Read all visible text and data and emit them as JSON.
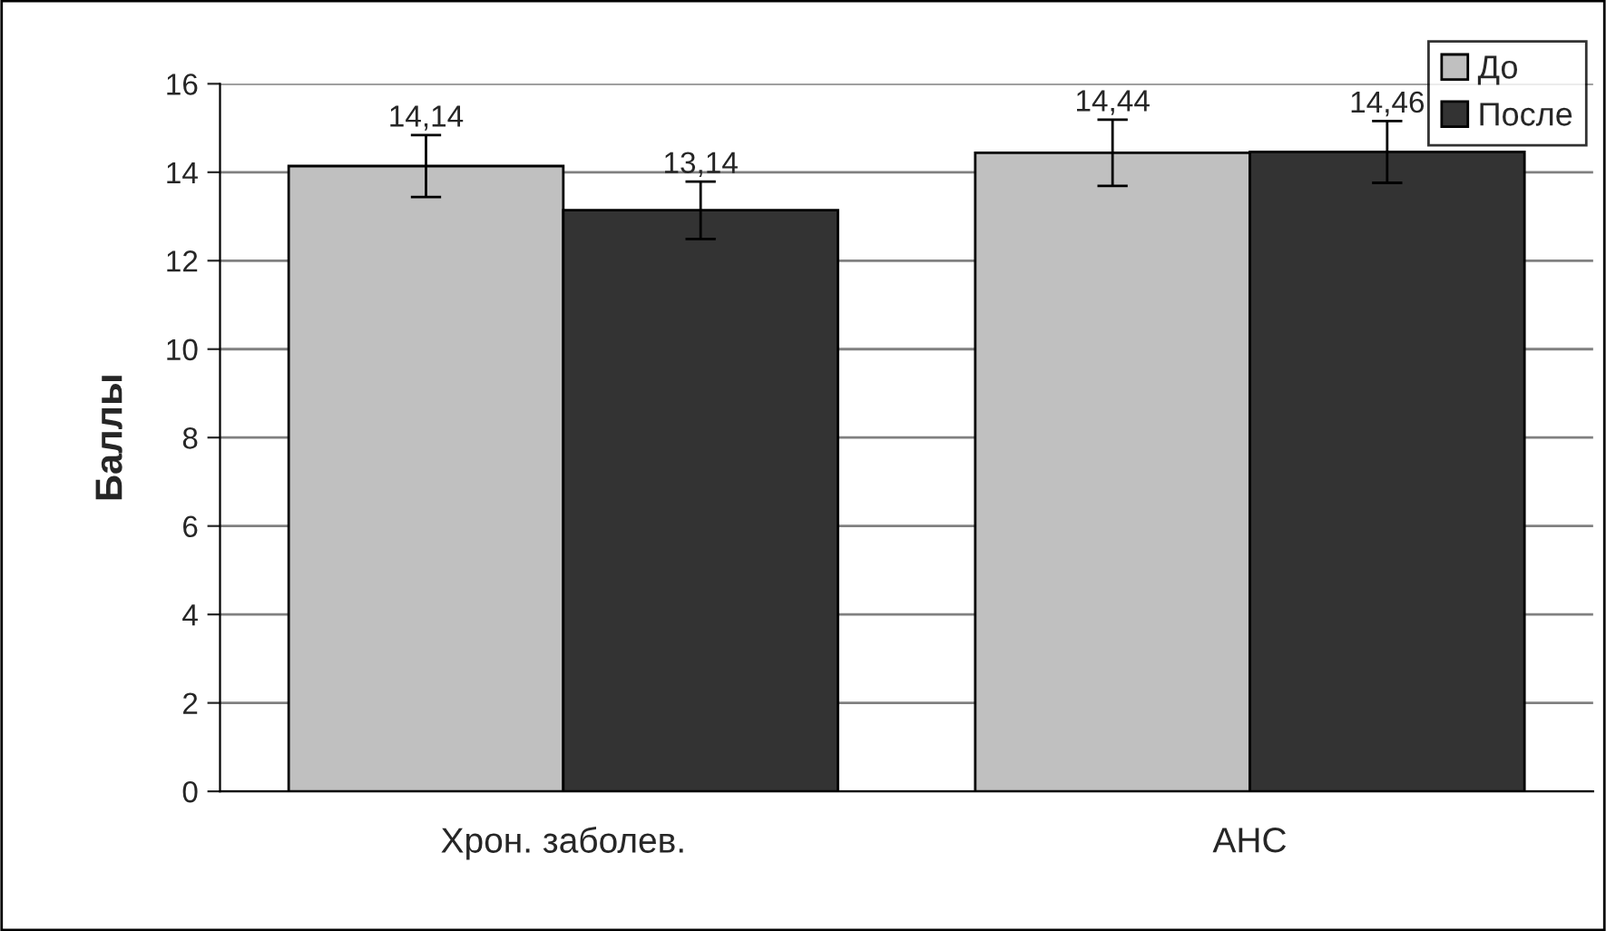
{
  "chart_data": {
    "type": "bar",
    "ylabel": "Баллы",
    "categories": [
      "Хрон. заболев.",
      "АНС"
    ],
    "series": [
      {
        "name": "До",
        "color": "#c0c0c0",
        "values": [
          14.14,
          14.44
        ],
        "errors": [
          0.7,
          0.75
        ],
        "value_labels": [
          "14,14",
          "14,44"
        ]
      },
      {
        "name": "После",
        "color": "#333333",
        "values": [
          13.14,
          14.46
        ],
        "errors": [
          0.65,
          0.7
        ],
        "value_labels": [
          "13,14",
          "14,46"
        ]
      }
    ],
    "ylim": [
      0,
      16
    ],
    "yticks": [
      0,
      2,
      4,
      6,
      8,
      10,
      12,
      14,
      16
    ],
    "grid": "y",
    "legend": "top right"
  }
}
